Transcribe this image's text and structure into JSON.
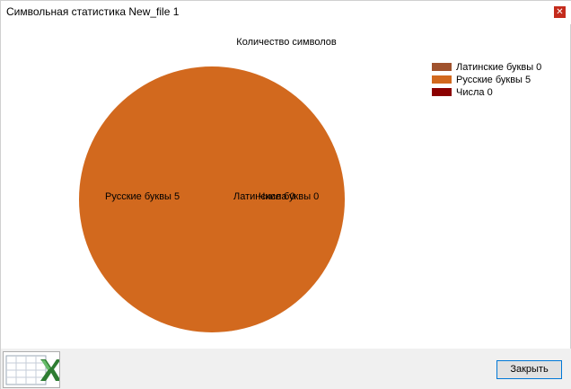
{
  "window": {
    "title": "Символьная статистика New_file 1",
    "close_glyph": "✕"
  },
  "chart_data": {
    "type": "pie",
    "title": "Количество символов",
    "categories": [
      "Латинские буквы",
      "Русские буквы",
      "Числа"
    ],
    "values": [
      0,
      5,
      0
    ],
    "legend_labels": [
      "Латинские буквы 0",
      "Русские буквы 5",
      "Числа 0"
    ],
    "data_labels": [
      "Латинские буквы 0",
      "Русские буквы 5",
      "Числа 0"
    ],
    "colors": [
      "#a0522d",
      "#d2691e",
      "#8b0000"
    ],
    "legend_position": "top-right"
  },
  "footer": {
    "excel_icon": "excel-icon",
    "close_label": "Закрыть"
  }
}
